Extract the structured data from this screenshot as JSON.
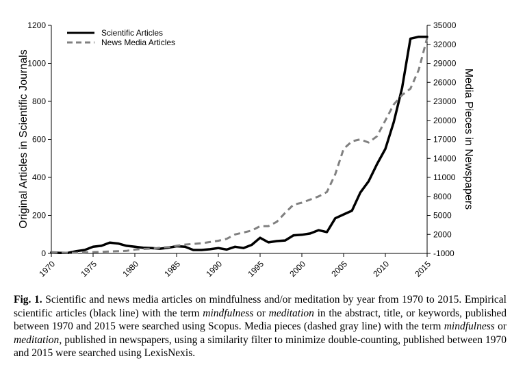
{
  "chart_data": {
    "type": "line",
    "x_ticks": [
      "1970",
      "1975",
      "1980",
      "1985",
      "1990",
      "1995",
      "2000",
      "2005",
      "2010",
      "2015"
    ],
    "xlim": [
      1970,
      2015
    ],
    "ylabel": "Original Articles in Scientific Journals",
    "ylim": [
      0,
      1200
    ],
    "y_ticks": [
      "0",
      "200",
      "400",
      "600",
      "800",
      "1000",
      "1200"
    ],
    "y2label": "Media Pieces in Newspapers",
    "y2lim": [
      -1000,
      35000
    ],
    "y2_ticks": [
      "-1000",
      "2000",
      "5000",
      "8000",
      "11000",
      "14000",
      "17000",
      "20000",
      "23000",
      "26000",
      "29000",
      "32000",
      "35000"
    ],
    "legend_position": "top-left",
    "series": [
      {
        "name": "Scientific Articles",
        "axis": "left",
        "style": "solid",
        "color": "#000000",
        "x": [
          1970,
          1971,
          1972,
          1973,
          1974,
          1975,
          1976,
          1977,
          1978,
          1979,
          1980,
          1981,
          1982,
          1983,
          1984,
          1985,
          1986,
          1987,
          1988,
          1989,
          1990,
          1991,
          1992,
          1993,
          1994,
          1995,
          1996,
          1997,
          1998,
          1999,
          2000,
          2001,
          2002,
          2003,
          2004,
          2005,
          2006,
          2007,
          2008,
          2009,
          2010,
          2011,
          2012,
          2013,
          2014,
          2015
        ],
        "y": [
          5,
          3,
          3,
          12,
          18,
          35,
          40,
          57,
          52,
          40,
          35,
          30,
          28,
          25,
          30,
          38,
          35,
          18,
          18,
          22,
          28,
          20,
          35,
          28,
          45,
          82,
          58,
          65,
          68,
          95,
          98,
          105,
          122,
          112,
          185,
          205,
          225,
          320,
          380,
          470,
          550,
          690,
          870,
          1130,
          1140,
          1140
        ]
      },
      {
        "name": "News Media Articles",
        "axis": "right",
        "style": "dashed",
        "color": "#808080",
        "x": [
          1970,
          1971,
          1972,
          1973,
          1974,
          1975,
          1976,
          1977,
          1978,
          1979,
          1980,
          1981,
          1982,
          1983,
          1984,
          1985,
          1986,
          1987,
          1988,
          1989,
          1990,
          1991,
          1992,
          1993,
          1994,
          1995,
          1996,
          1997,
          1998,
          1999,
          2000,
          2001,
          2002,
          2003,
          2004,
          2005,
          2006,
          2007,
          2008,
          2009,
          2010,
          2011,
          2012,
          2013,
          2014,
          2015
        ],
        "y": [
          -800,
          -850,
          -900,
          -900,
          -850,
          -800,
          -750,
          -700,
          -650,
          -600,
          -400,
          -300,
          -250,
          -100,
          0,
          200,
          400,
          500,
          600,
          800,
          1000,
          1300,
          2000,
          2300,
          2600,
          3300,
          3300,
          4000,
          5400,
          6700,
          7000,
          7500,
          8000,
          8700,
          11500,
          15500,
          16700,
          17000,
          16500,
          17500,
          20000,
          22500,
          24000,
          25000,
          28000,
          33000
        ]
      }
    ]
  },
  "caption": {
    "label": "Fig. 1.",
    "p1": " Scientific and news media articles on mindfulness and/or meditation by year from 1970 to 2015. Empirical scientific articles (black line) with the term ",
    "em1": "mindfulness",
    "p2": " or ",
    "em2": "meditation",
    "p3": " in the abstract, title, or keywords, published between 1970 and 2015 were searched using Scopus. Media pieces (dashed gray line) with the term ",
    "em3": "mindfulness",
    "p4": " or ",
    "em4": "meditation",
    "p5": ", published in newspapers, using a similarity filter to minimize double-counting, published between 1970 and 2015 were searched using LexisNexis."
  }
}
